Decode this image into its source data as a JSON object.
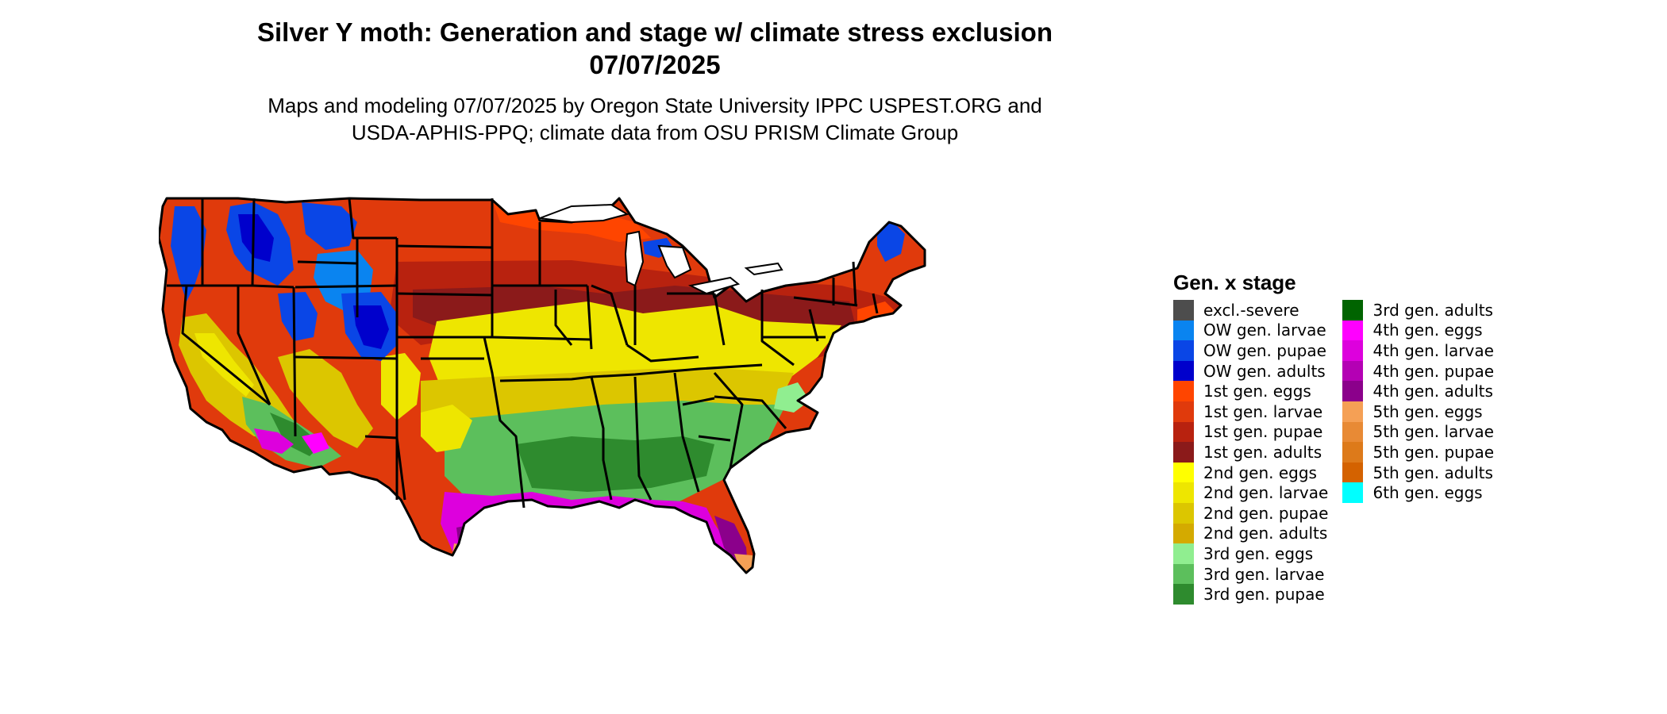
{
  "title": {
    "line1": "Silver Y moth: Generation and stage w/ climate stress exclusion",
    "line2": "07/07/2025"
  },
  "subtitle": {
    "line1": "Maps and modeling 07/07/2025 by Oregon State University IPPC USPEST.ORG and",
    "line2": "USDA-APHIS-PPQ; climate data from OSU PRISM Climate Group"
  },
  "legend": {
    "title": "Gen. x stage",
    "columns": [
      [
        {
          "label": "excl.-severe",
          "color": "#4d4d4d"
        },
        {
          "label": "OW gen. larvae",
          "color": "#0a84f0"
        },
        {
          "label": "OW gen. pupae",
          "color": "#0a46e6"
        },
        {
          "label": "OW gen. adults",
          "color": "#0000cc"
        },
        {
          "label": "1st gen. eggs",
          "color": "#ff4500"
        },
        {
          "label": "1st gen. larvae",
          "color": "#e03a0c"
        },
        {
          "label": "1st gen. pupae",
          "color": "#b8220f"
        },
        {
          "label": "1st gen. adults",
          "color": "#8b1a1a"
        },
        {
          "label": "2nd gen. eggs",
          "color": "#ffff00"
        },
        {
          "label": "2nd gen. larvae",
          "color": "#eee600"
        },
        {
          "label": "2nd gen. pupae",
          "color": "#dcc600"
        },
        {
          "label": "2nd gen. adults",
          "color": "#d4aa00"
        },
        {
          "label": "3rd gen. eggs",
          "color": "#90ee90"
        },
        {
          "label": "3rd gen. larvae",
          "color": "#5cbf5c"
        },
        {
          "label": "3rd gen. pupae",
          "color": "#2e8b2e"
        }
      ],
      [
        {
          "label": "3rd gen. adults",
          "color": "#006400"
        },
        {
          "label": "4th gen. eggs",
          "color": "#ff00ff"
        },
        {
          "label": "4th gen. larvae",
          "color": "#dd00dd"
        },
        {
          "label": "4th gen. pupae",
          "color": "#b400b4"
        },
        {
          "label": "4th gen. adults",
          "color": "#8b008b"
        },
        {
          "label": "5th gen. eggs",
          "color": "#f5a055"
        },
        {
          "label": "5th gen. larvae",
          "color": "#e88a35"
        },
        {
          "label": "5th gen. pupae",
          "color": "#dd7a1a"
        },
        {
          "label": "5th gen. adults",
          "color": "#d46200"
        },
        {
          "label": "6th gen. eggs",
          "color": "#00ffff"
        }
      ]
    ]
  },
  "map": {
    "region": "contiguous United States",
    "colors": {
      "ow_larvae": "#0a84f0",
      "ow_pupae": "#0a46e6",
      "ow_adults": "#0000cc",
      "gen1_eggs": "#ff4500",
      "gen1_larvae": "#e03a0c",
      "gen1_pupae": "#b8220f",
      "gen1_adults": "#8b1a1a",
      "gen2_eggs": "#ffff00",
      "gen2_larvae": "#eee600",
      "gen2_pupae": "#dcc600",
      "gen2_adults": "#d4aa00",
      "gen3_eggs": "#90ee90",
      "gen3_larvae": "#5cbf5c",
      "gen3_pupae": "#2e8b2e",
      "gen3_adults": "#006400",
      "gen4_eggs": "#ff00ff",
      "gen4_larvae": "#dd00dd",
      "gen4_adults": "#8b008b",
      "gen5_eggs": "#f5a055",
      "border": "#000000"
    }
  }
}
